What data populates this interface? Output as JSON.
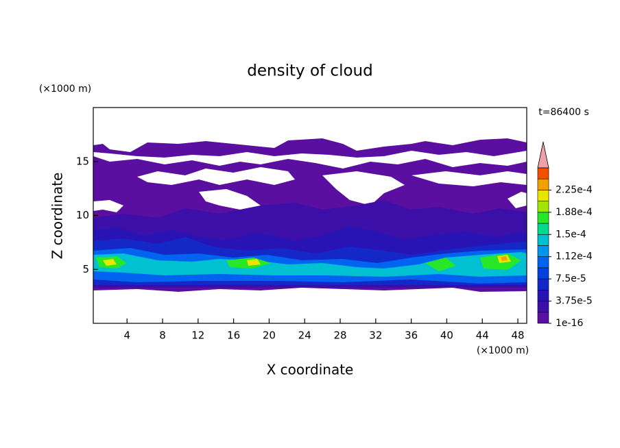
{
  "chart_data": {
    "type": "contour",
    "title": "density of cloud",
    "x_label": "X coordinate",
    "y_label": "Z coordinate",
    "x_unit": "(×1000 m)",
    "y_unit": "(×1000 m)",
    "time_label": "t=86400 s",
    "xlim": [
      0.2,
      49
    ],
    "xticks": [
      4,
      8,
      12,
      16,
      20,
      24,
      28,
      32,
      36,
      40,
      44,
      48
    ],
    "ylim": [
      0,
      20
    ],
    "yticks": [
      5,
      10,
      15
    ],
    "colorbar": {
      "clim": [
        1e-16,
        0.0002625
      ],
      "ticks": [
        {
          "value": 1e-16,
          "label": "1e-16"
        },
        {
          "value": 3.75e-05,
          "label": "3.75e-5"
        },
        {
          "value": 7.5e-05,
          "label": "7.5e-5"
        },
        {
          "value": 0.0001125,
          "label": "1.12e-4"
        },
        {
          "value": 0.00015,
          "label": "1.5e-4"
        },
        {
          "value": 0.0001875,
          "label": "1.88e-4"
        },
        {
          "value": 0.000225,
          "label": "2.25e-4"
        }
      ],
      "colors": [
        "#5a0fa0",
        "#3c0fa8",
        "#2814b4",
        "#1428c8",
        "#0040dc",
        "#0064f0",
        "#0096f0",
        "#00c0d2",
        "#00dc8c",
        "#28e628",
        "#a0e600",
        "#e6e600",
        "#f0a000",
        "#f05000"
      ],
      "extend_color": "#f0a0a8"
    }
  }
}
